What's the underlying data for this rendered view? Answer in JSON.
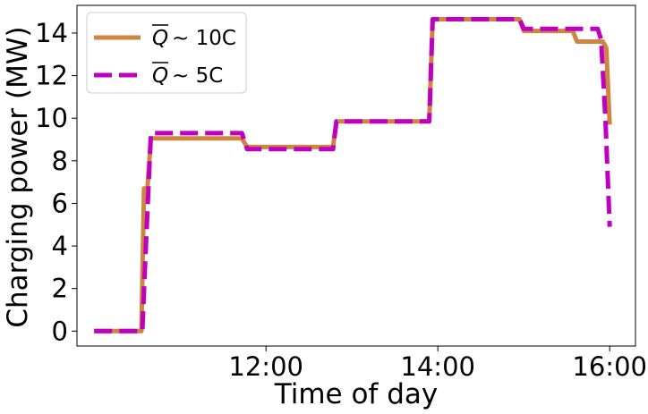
{
  "chart_data": {
    "type": "line",
    "title": "",
    "xlabel": "Time of day",
    "ylabel": "Charging power (MW)",
    "xlim_hours": [
      9.8,
      16.3
    ],
    "ylim": [
      -0.7,
      15.3
    ],
    "x_ticks": [
      {
        "hour": 12,
        "label": "12:00"
      },
      {
        "hour": 14,
        "label": "14:00"
      },
      {
        "hour": 16,
        "label": "16:00"
      }
    ],
    "y_ticks": [
      0,
      2,
      4,
      6,
      8,
      10,
      12,
      14
    ],
    "legend": {
      "placement": "upper-left",
      "entries": [
        {
          "base": "Q",
          "suffix": "~ 10C",
          "series": 0
        },
        {
          "base": "Q",
          "suffix": "~ 5C",
          "series": 1
        }
      ]
    },
    "series": [
      {
        "color": "#cd853f",
        "style": "solid",
        "points": [
          [
            10.0,
            0.0
          ],
          [
            10.55,
            0.0
          ],
          [
            10.58,
            6.7
          ],
          [
            10.62,
            6.7
          ],
          [
            10.66,
            9.05
          ],
          [
            11.72,
            9.05
          ],
          [
            11.78,
            8.65
          ],
          [
            12.78,
            8.65
          ],
          [
            12.82,
            9.85
          ],
          [
            13.9,
            9.85
          ],
          [
            13.94,
            14.65
          ],
          [
            14.95,
            14.65
          ],
          [
            15.0,
            14.1
          ],
          [
            15.57,
            14.1
          ],
          [
            15.62,
            13.6
          ],
          [
            15.92,
            13.6
          ],
          [
            15.96,
            13.3
          ],
          [
            16.0,
            9.7
          ]
        ]
      },
      {
        "color": "#bf00bf",
        "style": "dashed",
        "points": [
          [
            10.0,
            0.0
          ],
          [
            10.56,
            0.0
          ],
          [
            10.6,
            3.8
          ],
          [
            10.66,
            9.3
          ],
          [
            11.72,
            9.3
          ],
          [
            11.78,
            8.55
          ],
          [
            12.78,
            8.55
          ],
          [
            12.82,
            9.85
          ],
          [
            13.9,
            9.85
          ],
          [
            13.94,
            14.65
          ],
          [
            14.95,
            14.65
          ],
          [
            15.0,
            14.2
          ],
          [
            15.86,
            14.2
          ],
          [
            15.9,
            13.7
          ],
          [
            15.95,
            10.0
          ],
          [
            16.0,
            4.9
          ]
        ]
      }
    ]
  }
}
